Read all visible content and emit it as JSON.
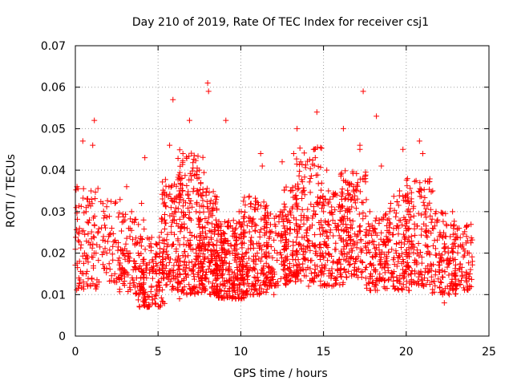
{
  "chart_data": {
    "type": "scatter",
    "title": "Day 210 of 2019, Rate Of TEC Index for receiver csj1",
    "xlabel": "GPS time / hours",
    "ylabel": "ROTI / TECUs",
    "xlim": [
      0,
      25
    ],
    "ylim": [
      0,
      0.07
    ],
    "x_ticks": [
      "0",
      "5",
      "10",
      "15",
      "20",
      "25"
    ],
    "x_tick_values": [
      0,
      5,
      10,
      15,
      20,
      25
    ],
    "y_ticks": [
      "0",
      "0.01",
      "0.02",
      "0.03",
      "0.04",
      "0.05",
      "0.06",
      "0.07"
    ],
    "y_tick_values": [
      0,
      0.01,
      0.02,
      0.03,
      0.04,
      0.05,
      0.06,
      0.07
    ],
    "grid": true,
    "marker": "+",
    "color": "#ff0000",
    "series": [
      {
        "name": "ROTI",
        "x": [
          0.05,
          0.15,
          0.25,
          0.35,
          0.45,
          0.55,
          0.65,
          0.75,
          0.85,
          0.95,
          1.05,
          1.15,
          1.25,
          1.3,
          1.7,
          1.9,
          2.2,
          2.4,
          2.6,
          2.8,
          2.9,
          3.0,
          3.1,
          3.2,
          3.3,
          3.4,
          3.5,
          3.6,
          3.7,
          3.8,
          3.9,
          4.0,
          4.1,
          4.2,
          4.3,
          4.4,
          4.5,
          4.6,
          4.7,
          4.8,
          4.9,
          5.0,
          5.1,
          5.2,
          5.3,
          5.4,
          5.5,
          5.6,
          5.7,
          5.8,
          5.9,
          6.0,
          6.1,
          6.2,
          6.3,
          6.4,
          6.5,
          6.6,
          6.7,
          6.8,
          6.9,
          7.0,
          7.1,
          7.2,
          7.3,
          7.4,
          7.5,
          7.6,
          7.7,
          7.8,
          7.9,
          8.0,
          8.05,
          8.1,
          8.2,
          8.3,
          8.4,
          8.5,
          8.6,
          8.7,
          8.8,
          8.9,
          9.0,
          9.1,
          9.2,
          9.3,
          9.4,
          9.5,
          9.6,
          9.7,
          9.8,
          9.9,
          10.0,
          10.1,
          10.2,
          10.3,
          10.4,
          10.5,
          10.6,
          10.7,
          10.8,
          10.9,
          11.0,
          11.2,
          11.4,
          11.6,
          11.8,
          12.0,
          12.2,
          12.4,
          12.6,
          12.8,
          13.0,
          13.2,
          13.4,
          13.6,
          13.8,
          14.0,
          14.2,
          14.4,
          14.6,
          14.8,
          15.0,
          15.2,
          15.4,
          15.6,
          15.8,
          16.0,
          16.2,
          16.4,
          16.6,
          16.8,
          17.0,
          17.2,
          17.4,
          17.6,
          17.8,
          18.0,
          18.2,
          18.4,
          18.6,
          18.8,
          19.0,
          19.2,
          19.4,
          19.6,
          19.8,
          20.0,
          20.2,
          20.4,
          20.6,
          20.8,
          21.0,
          21.2,
          21.4,
          21.6,
          21.8,
          22.0,
          22.2,
          22.4,
          22.6,
          22.8,
          23.0,
          23.2,
          23.4,
          23.6,
          23.8,
          24.0,
          0.1,
          0.5,
          0.9,
          1.1,
          2.5,
          3.3,
          4.2,
          5.5,
          6.3,
          6.8,
          7.3,
          7.8,
          8.6,
          9.1,
          9.6,
          10.4,
          11.3,
          12.5,
          13.5,
          14.1,
          14.5,
          15.3,
          16.1,
          16.6,
          17.2,
          17.9,
          18.5,
          19.4,
          20.3,
          21.1,
          22.3,
          23.1,
          23.7
        ],
        "y": [
          0.031,
          0.025,
          0.018,
          0.022,
          0.047,
          0.02,
          0.015,
          0.012,
          0.028,
          0.035,
          0.046,
          0.052,
          0.02,
          0.022,
          0.024,
          0.02,
          0.026,
          0.032,
          0.014,
          0.016,
          0.02,
          0.028,
          0.036,
          0.018,
          0.024,
          0.03,
          0.016,
          0.022,
          0.014,
          0.02,
          0.012,
          0.032,
          0.018,
          0.01,
          0.014,
          0.007,
          0.016,
          0.012,
          0.018,
          0.009,
          0.015,
          0.013,
          0.02,
          0.025,
          0.017,
          0.028,
          0.034,
          0.019,
          0.046,
          0.025,
          0.057,
          0.03,
          0.021,
          0.016,
          0.038,
          0.026,
          0.044,
          0.018,
          0.022,
          0.034,
          0.052,
          0.028,
          0.016,
          0.024,
          0.03,
          0.019,
          0.04,
          0.014,
          0.026,
          0.021,
          0.034,
          0.061,
          0.059,
          0.022,
          0.018,
          0.015,
          0.012,
          0.028,
          0.02,
          0.016,
          0.024,
          0.014,
          0.018,
          0.052,
          0.013,
          0.016,
          0.022,
          0.02,
          0.012,
          0.026,
          0.016,
          0.03,
          0.018,
          0.014,
          0.024,
          0.02,
          0.016,
          0.012,
          0.022,
          0.028,
          0.018,
          0.014,
          0.02,
          0.044,
          0.022,
          0.014,
          0.025,
          0.01,
          0.02,
          0.03,
          0.018,
          0.026,
          0.035,
          0.044,
          0.05,
          0.022,
          0.016,
          0.028,
          0.038,
          0.045,
          0.054,
          0.02,
          0.03,
          0.04,
          0.025,
          0.018,
          0.034,
          0.028,
          0.05,
          0.022,
          0.03,
          0.036,
          0.024,
          0.045,
          0.059,
          0.02,
          0.03,
          0.026,
          0.053,
          0.018,
          0.014,
          0.024,
          0.03,
          0.012,
          0.02,
          0.035,
          0.045,
          0.016,
          0.028,
          0.022,
          0.018,
          0.047,
          0.044,
          0.025,
          0.02,
          0.035,
          0.03,
          0.016,
          0.01,
          0.024,
          0.018,
          0.03,
          0.012,
          0.026,
          0.022,
          0.014,
          0.02,
          0.018,
          0.036,
          0.012,
          0.022,
          0.024,
          0.013,
          0.02,
          0.043,
          0.017,
          0.009,
          0.023,
          0.02,
          0.012,
          0.017,
          0.016,
          0.021,
          0.01,
          0.041,
          0.042,
          0.015,
          0.012,
          0.043,
          0.035,
          0.02,
          0.028,
          0.046,
          0.017,
          0.041,
          0.026,
          0.015,
          0.014,
          0.008,
          0.026,
          0.012
        ],
        "bands": [
          {
            "start": 0.0,
            "end": 1.4,
            "low": 0.011,
            "high": 0.036,
            "n": 90
          },
          {
            "start": 1.4,
            "end": 3.0,
            "low": 0.013,
            "high": 0.033,
            "n": 70
          },
          {
            "start": 2.6,
            "end": 4.2,
            "low": 0.01,
            "high": 0.03,
            "n": 90
          },
          {
            "start": 3.8,
            "end": 5.4,
            "low": 0.007,
            "high": 0.024,
            "n": 120
          },
          {
            "start": 5.2,
            "end": 6.6,
            "low": 0.011,
            "high": 0.038,
            "n": 140
          },
          {
            "start": 6.2,
            "end": 7.8,
            "low": 0.01,
            "high": 0.045,
            "n": 190
          },
          {
            "start": 7.4,
            "end": 8.6,
            "low": 0.01,
            "high": 0.036,
            "n": 150
          },
          {
            "start": 8.4,
            "end": 10.2,
            "low": 0.009,
            "high": 0.028,
            "n": 260
          },
          {
            "start": 10.0,
            "end": 11.6,
            "low": 0.01,
            "high": 0.034,
            "n": 160
          },
          {
            "start": 11.4,
            "end": 12.8,
            "low": 0.012,
            "high": 0.03,
            "n": 120
          },
          {
            "start": 12.6,
            "end": 13.4,
            "low": 0.013,
            "high": 0.038,
            "n": 90
          },
          {
            "start": 13.3,
            "end": 14.9,
            "low": 0.013,
            "high": 0.046,
            "n": 170
          },
          {
            "start": 14.8,
            "end": 16.2,
            "low": 0.012,
            "high": 0.036,
            "n": 130
          },
          {
            "start": 16.0,
            "end": 17.6,
            "low": 0.014,
            "high": 0.04,
            "n": 170
          },
          {
            "start": 17.5,
            "end": 19.0,
            "low": 0.011,
            "high": 0.03,
            "n": 120
          },
          {
            "start": 18.8,
            "end": 20.2,
            "low": 0.011,
            "high": 0.034,
            "n": 120
          },
          {
            "start": 20.0,
            "end": 21.6,
            "low": 0.012,
            "high": 0.038,
            "n": 140
          },
          {
            "start": 21.5,
            "end": 23.0,
            "low": 0.01,
            "high": 0.03,
            "n": 120
          },
          {
            "start": 22.8,
            "end": 24.0,
            "low": 0.011,
            "high": 0.027,
            "n": 80
          }
        ]
      }
    ]
  }
}
